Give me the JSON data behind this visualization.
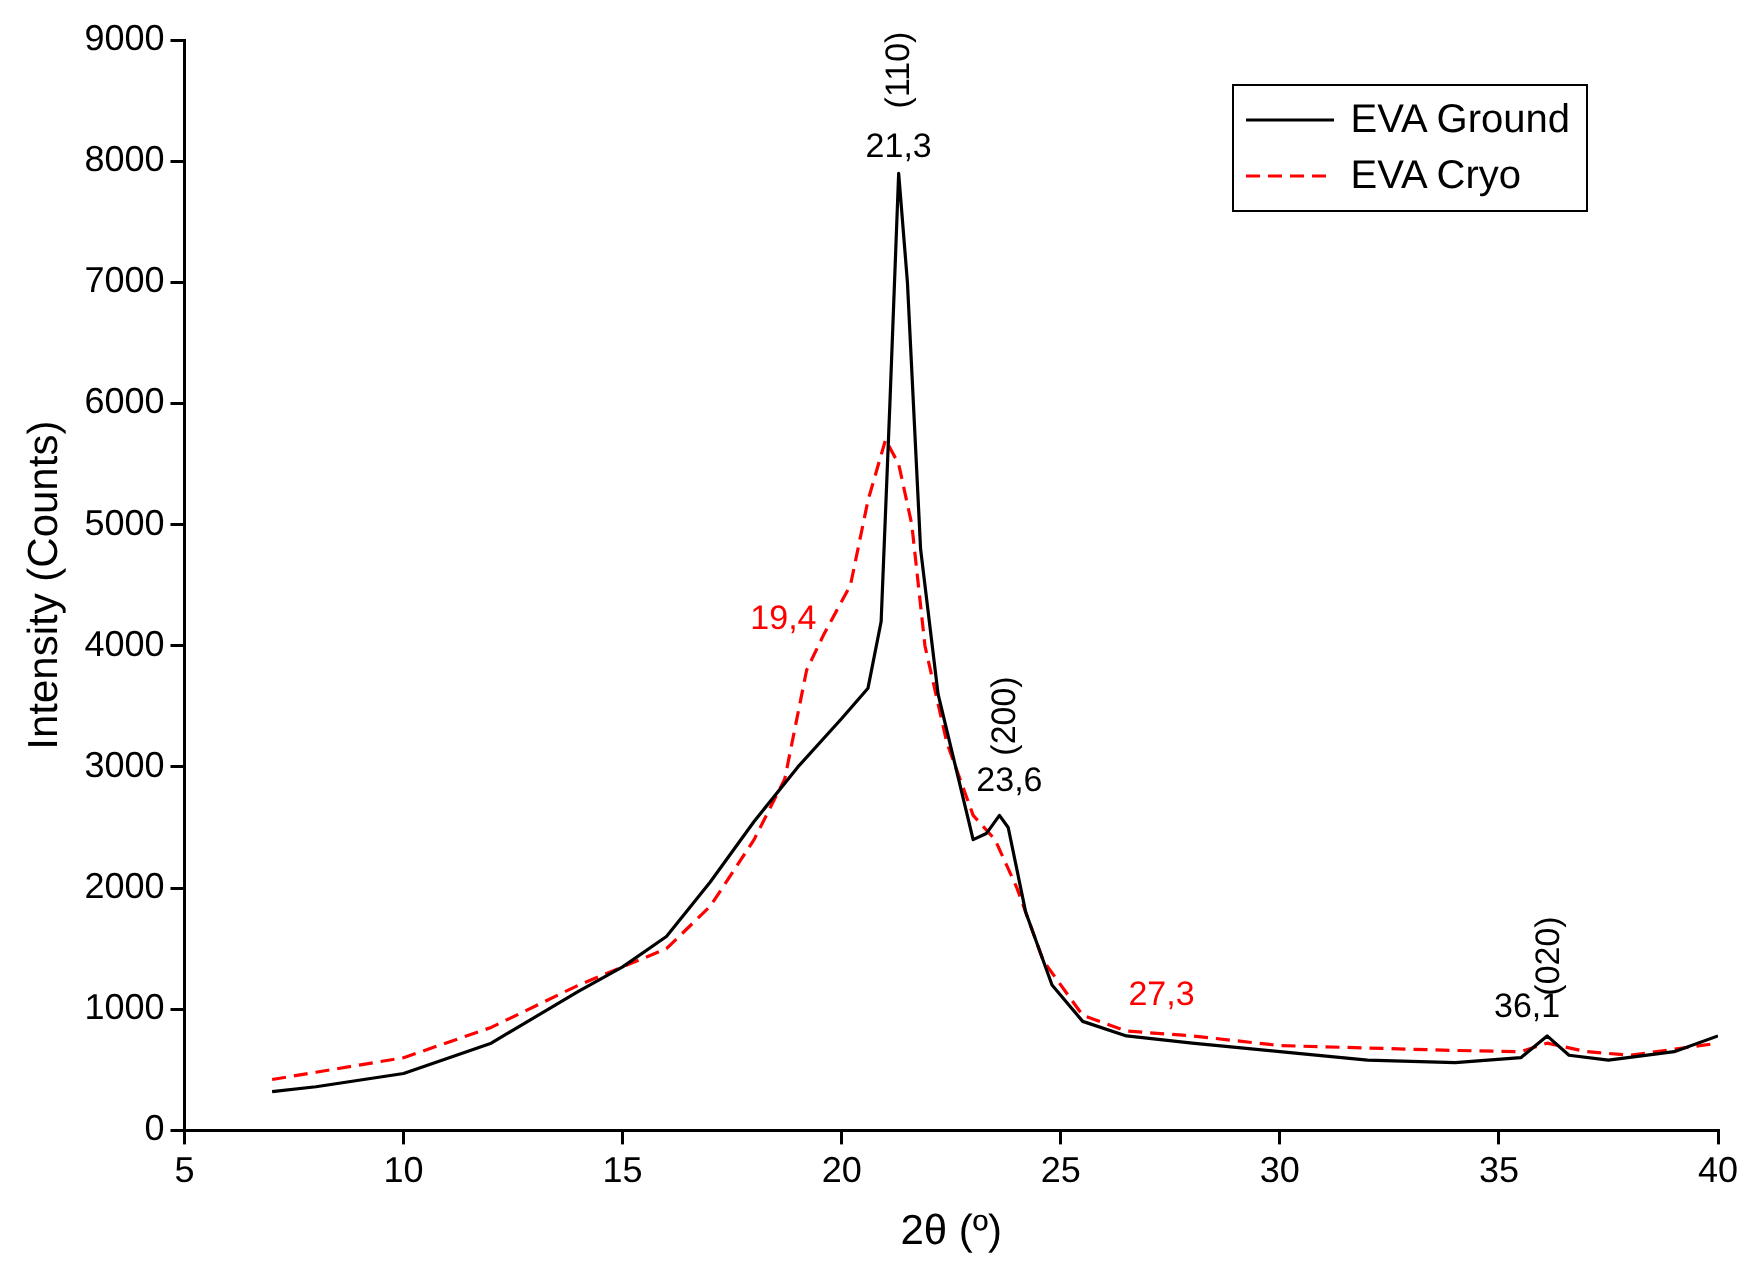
{
  "chart_data": {
    "type": "line",
    "xlabel": "2θ (º)",
    "ylabel": "Intensity (Counts)",
    "xlim": [
      5,
      40
    ],
    "ylim": [
      0,
      9000
    ],
    "xticks": [
      5,
      10,
      15,
      20,
      25,
      30,
      35,
      40
    ],
    "yticks": [
      0,
      1000,
      2000,
      3000,
      4000,
      5000,
      6000,
      7000,
      8000,
      9000
    ],
    "grid": false,
    "legend": "top right",
    "marker": "none",
    "series": [
      {
        "name": "EVA Ground",
        "color": "#000000",
        "line_style": "solid",
        "x": [
          7,
          8,
          10,
          12,
          14,
          15,
          16,
          17,
          18,
          19,
          20,
          20.6,
          20.9,
          21.1,
          21.3,
          21.5,
          21.8,
          22.2,
          22.6,
          23,
          23.3,
          23.6,
          23.8,
          24.2,
          24.8,
          25.5,
          26.5,
          28,
          30,
          32,
          34,
          35.5,
          36.1,
          36.6,
          37.5,
          39,
          40
        ],
        "values": [
          320,
          360,
          470,
          720,
          1150,
          1350,
          1600,
          2050,
          2550,
          3000,
          3400,
          3650,
          4200,
          6000,
          7900,
          7000,
          4800,
          3600,
          3000,
          2400,
          2450,
          2600,
          2500,
          1800,
          1200,
          900,
          780,
          720,
          650,
          580,
          560,
          600,
          780,
          620,
          580,
          650,
          780
        ]
      },
      {
        "name": "EVA Cryo",
        "color": "#ff0000",
        "line_style": "dashed",
        "x": [
          7,
          8,
          10,
          12,
          14,
          15,
          16,
          17,
          18,
          18.7,
          19.2,
          19.6,
          20.2,
          20.6,
          21,
          21.3,
          21.6,
          21.9,
          22.4,
          23,
          23.5,
          24,
          24.6,
          25.5,
          26.5,
          28,
          30,
          32,
          34,
          35.5,
          36.1,
          37,
          38,
          40
        ],
        "values": [
          420,
          480,
          600,
          850,
          1200,
          1350,
          1500,
          1850,
          2400,
          2900,
          3800,
          4100,
          4500,
          5200,
          5700,
          5500,
          5000,
          4000,
          3200,
          2600,
          2400,
          2000,
          1400,
          950,
          820,
          780,
          700,
          680,
          660,
          650,
          720,
          650,
          620,
          720
        ]
      }
    ],
    "annotations": [
      {
        "text": "(110)",
        "x": 21.3,
        "y": 7900
      },
      {
        "text": "21,3",
        "x": 21.3,
        "y": 7900
      },
      {
        "text": "19,4",
        "x": 19.4,
        "y": 3900
      },
      {
        "text": "(200)",
        "x": 23.6,
        "y": 2600
      },
      {
        "text": "23,6",
        "x": 23.6,
        "y": 2600
      },
      {
        "text": "27,3",
        "x": 27.3,
        "y": 800
      },
      {
        "text": "(020)",
        "x": 36.1,
        "y": 780
      },
      {
        "text": "36,1",
        "x": 36.1,
        "y": 780
      }
    ]
  }
}
